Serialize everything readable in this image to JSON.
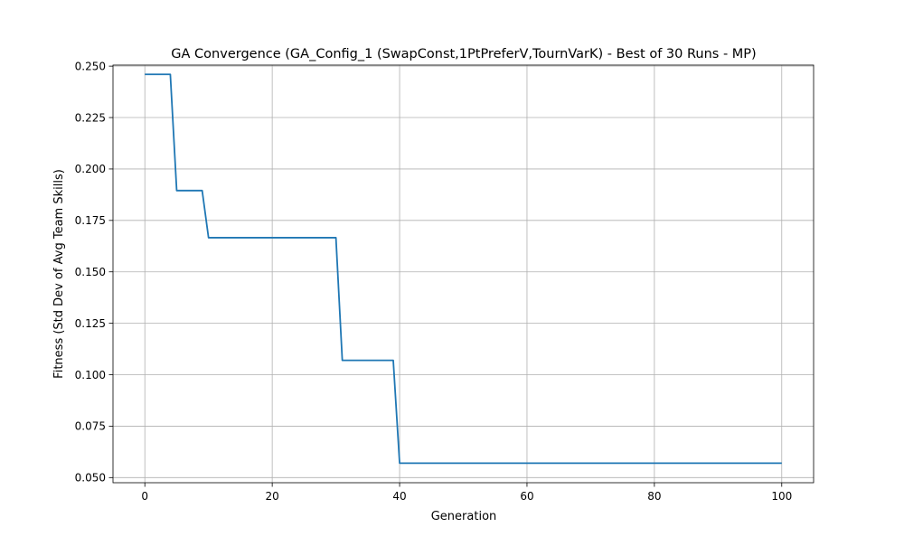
{
  "chart_data": {
    "type": "line",
    "title": "GA Convergence (GA_Config_1 (SwapConst,1PtPreferV,TournVarK) - Best of 30 Runs - MP)",
    "xlabel": "Generation",
    "ylabel": "Fitness (Std Dev of Avg Team Skills)",
    "xlim": [
      -5,
      105
    ],
    "ylim": [
      0.0475,
      0.2505
    ],
    "xticks": [
      0,
      20,
      40,
      60,
      80,
      100
    ],
    "yticks": [
      0.05,
      0.075,
      0.1,
      0.125,
      0.15,
      0.175,
      0.2,
      0.225,
      0.25
    ],
    "xtick_labels": [
      "0",
      "20",
      "40",
      "60",
      "80",
      "100"
    ],
    "ytick_labels": [
      "0.050",
      "0.075",
      "0.100",
      "0.125",
      "0.150",
      "0.175",
      "0.200",
      "0.225",
      "0.250"
    ],
    "grid": true,
    "series": [
      {
        "color": "#1f77b4",
        "x": [
          0,
          1,
          2,
          3,
          4,
          5,
          6,
          7,
          8,
          9,
          10,
          11,
          12,
          13,
          14,
          15,
          16,
          17,
          18,
          19,
          20,
          21,
          22,
          23,
          24,
          25,
          26,
          27,
          28,
          29,
          30,
          31,
          32,
          33,
          34,
          35,
          36,
          37,
          38,
          39,
          40,
          50,
          60,
          70,
          80,
          90,
          100
        ],
        "y": [
          0.246,
          0.246,
          0.246,
          0.246,
          0.246,
          0.1895,
          0.1895,
          0.1895,
          0.1895,
          0.1895,
          0.1666,
          0.1666,
          0.1666,
          0.1666,
          0.1666,
          0.1666,
          0.1666,
          0.1666,
          0.1666,
          0.1666,
          0.1666,
          0.1666,
          0.1666,
          0.1666,
          0.1666,
          0.1666,
          0.1666,
          0.1666,
          0.1666,
          0.1666,
          0.1666,
          0.107,
          0.107,
          0.107,
          0.107,
          0.107,
          0.107,
          0.107,
          0.107,
          0.107,
          0.057,
          0.057,
          0.057,
          0.057,
          0.057,
          0.057,
          0.057
        ]
      }
    ]
  }
}
